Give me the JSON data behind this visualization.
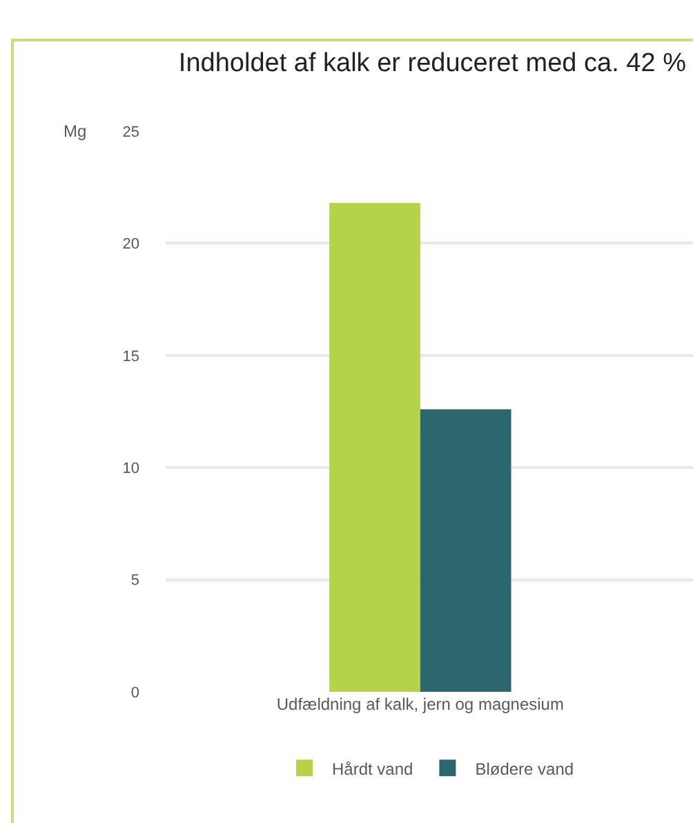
{
  "chart_data": {
    "type": "bar",
    "title": "Indholdet af kalk er reduceret med ca. 42 %",
    "ylabel": "Mg",
    "categories": [
      "Udfældning af kalk, jern og magnesium"
    ],
    "series": [
      {
        "name": "Hårdt vand",
        "color": "#b3d44a",
        "values": [
          21.8
        ]
      },
      {
        "name": "Blødere vand",
        "color": "#2c666e",
        "values": [
          12.6
        ]
      }
    ],
    "ylim": [
      0,
      25
    ],
    "yticks": [
      0,
      5,
      10,
      15,
      20,
      25
    ],
    "grid": "y",
    "legend": "bottom"
  }
}
